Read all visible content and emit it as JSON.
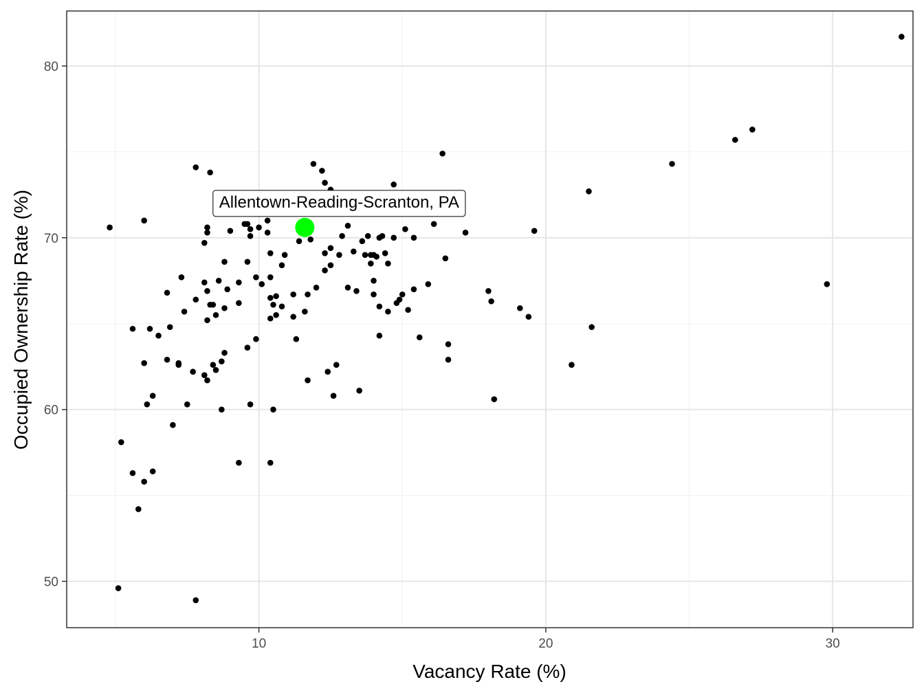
{
  "chart_data": {
    "type": "scatter",
    "title": "",
    "xlabel": "Vacancy Rate (%)",
    "ylabel": "Occupied Ownership Rate (%)",
    "xlim": [
      3.3,
      32.8
    ],
    "ylim": [
      47.3,
      83.2
    ],
    "x_ticks": [
      10,
      20,
      30
    ],
    "y_ticks": [
      50,
      60,
      70,
      80
    ],
    "x_minor": [
      5,
      15,
      25
    ],
    "y_minor": [
      55,
      65,
      75
    ],
    "grid": true,
    "point_color": "#000000",
    "highlight": {
      "label": "Allentown-Reading-Scranton, PA",
      "x": 11.6,
      "y": 70.6,
      "color": "#00ff00"
    },
    "points": [
      [
        4.8,
        70.6
      ],
      [
        5.1,
        49.6
      ],
      [
        5.2,
        58.1
      ],
      [
        5.6,
        56.3
      ],
      [
        5.6,
        64.7
      ],
      [
        5.8,
        54.2
      ],
      [
        6.0,
        71.0
      ],
      [
        6.0,
        62.7
      ],
      [
        6.0,
        55.8
      ],
      [
        6.1,
        60.3
      ],
      [
        6.2,
        64.7
      ],
      [
        6.3,
        60.8
      ],
      [
        6.3,
        56.4
      ],
      [
        6.5,
        64.3
      ],
      [
        6.8,
        62.9
      ],
      [
        6.8,
        66.8
      ],
      [
        6.9,
        64.8
      ],
      [
        7.0,
        59.1
      ],
      [
        7.2,
        62.7
      ],
      [
        7.2,
        62.6
      ],
      [
        7.3,
        67.7
      ],
      [
        7.4,
        65.7
      ],
      [
        7.5,
        60.3
      ],
      [
        7.7,
        62.2
      ],
      [
        7.8,
        74.1
      ],
      [
        7.8,
        66.4
      ],
      [
        7.8,
        48.9
      ],
      [
        8.1,
        69.7
      ],
      [
        8.1,
        67.4
      ],
      [
        8.1,
        62.0
      ],
      [
        8.2,
        70.3
      ],
      [
        8.2,
        70.6
      ],
      [
        8.2,
        66.9
      ],
      [
        8.2,
        65.2
      ],
      [
        8.2,
        61.7
      ],
      [
        8.3,
        73.8
      ],
      [
        8.3,
        66.1
      ],
      [
        8.4,
        62.6
      ],
      [
        8.4,
        66.1
      ],
      [
        8.5,
        62.3
      ],
      [
        8.5,
        65.5
      ],
      [
        8.6,
        67.5
      ],
      [
        8.7,
        60.0
      ],
      [
        8.7,
        62.8
      ],
      [
        8.8,
        68.6
      ],
      [
        8.8,
        65.9
      ],
      [
        8.8,
        63.3
      ],
      [
        8.9,
        67.0
      ],
      [
        9.0,
        70.4
      ],
      [
        9.3,
        67.4
      ],
      [
        9.3,
        66.2
      ],
      [
        9.3,
        56.9
      ],
      [
        9.5,
        70.8
      ],
      [
        9.6,
        70.8
      ],
      [
        9.6,
        63.6
      ],
      [
        9.6,
        68.6
      ],
      [
        9.7,
        70.5
      ],
      [
        9.7,
        70.1
      ],
      [
        9.7,
        60.3
      ],
      [
        9.9,
        67.7
      ],
      [
        9.9,
        64.1
      ],
      [
        10.0,
        70.6
      ],
      [
        10.1,
        67.3
      ],
      [
        10.3,
        71.0
      ],
      [
        10.3,
        70.3
      ],
      [
        10.4,
        69.1
      ],
      [
        10.4,
        66.5
      ],
      [
        10.4,
        67.7
      ],
      [
        10.4,
        65.3
      ],
      [
        10.4,
        56.9
      ],
      [
        10.5,
        60.0
      ],
      [
        10.5,
        66.1
      ],
      [
        10.6,
        66.6
      ],
      [
        10.6,
        65.5
      ],
      [
        10.8,
        66.0
      ],
      [
        10.8,
        68.4
      ],
      [
        10.9,
        69.0
      ],
      [
        11.2,
        66.7
      ],
      [
        11.2,
        65.4
      ],
      [
        11.3,
        64.1
      ],
      [
        11.4,
        69.8
      ],
      [
        11.6,
        65.7
      ],
      [
        11.7,
        66.7
      ],
      [
        11.7,
        61.7
      ],
      [
        11.8,
        69.9
      ],
      [
        11.9,
        74.3
      ],
      [
        12.0,
        67.1
      ],
      [
        12.2,
        73.9
      ],
      [
        12.3,
        73.2
      ],
      [
        12.3,
        69.1
      ],
      [
        12.3,
        68.1
      ],
      [
        12.4,
        62.2
      ],
      [
        12.5,
        72.8
      ],
      [
        12.5,
        69.4
      ],
      [
        12.5,
        68.4
      ],
      [
        12.6,
        60.8
      ],
      [
        12.7,
        62.6
      ],
      [
        12.8,
        69.0
      ],
      [
        12.9,
        70.1
      ],
      [
        13.1,
        70.7
      ],
      [
        13.1,
        67.1
      ],
      [
        13.3,
        69.2
      ],
      [
        13.4,
        66.9
      ],
      [
        13.5,
        61.1
      ],
      [
        13.6,
        69.8
      ],
      [
        13.7,
        69.0
      ],
      [
        13.8,
        70.1
      ],
      [
        13.9,
        69.0
      ],
      [
        13.9,
        68.5
      ],
      [
        14.0,
        66.7
      ],
      [
        14.0,
        69.0
      ],
      [
        14.0,
        67.5
      ],
      [
        14.1,
        68.9
      ],
      [
        14.2,
        66.0
      ],
      [
        14.2,
        70.0
      ],
      [
        14.2,
        64.3
      ],
      [
        14.3,
        70.1
      ],
      [
        14.4,
        69.1
      ],
      [
        14.5,
        68.5
      ],
      [
        14.5,
        65.7
      ],
      [
        14.7,
        73.1
      ],
      [
        14.7,
        70.0
      ],
      [
        14.8,
        66.2
      ],
      [
        14.9,
        66.4
      ],
      [
        15.0,
        66.7
      ],
      [
        15.1,
        70.5
      ],
      [
        15.2,
        65.8
      ],
      [
        15.4,
        67.0
      ],
      [
        15.4,
        70.0
      ],
      [
        15.6,
        64.2
      ],
      [
        15.9,
        67.3
      ],
      [
        16.1,
        70.8
      ],
      [
        16.4,
        74.9
      ],
      [
        16.5,
        68.8
      ],
      [
        16.6,
        62.9
      ],
      [
        16.6,
        63.8
      ],
      [
        17.2,
        70.3
      ],
      [
        18.0,
        66.9
      ],
      [
        18.1,
        66.3
      ],
      [
        18.2,
        60.6
      ],
      [
        19.1,
        65.9
      ],
      [
        19.4,
        65.4
      ],
      [
        19.6,
        70.4
      ],
      [
        20.9,
        62.6
      ],
      [
        21.5,
        72.7
      ],
      [
        21.6,
        64.8
      ],
      [
        24.4,
        74.3
      ],
      [
        26.6,
        75.7
      ],
      [
        27.2,
        76.3
      ],
      [
        29.8,
        67.3
      ],
      [
        32.4,
        81.7
      ]
    ]
  }
}
